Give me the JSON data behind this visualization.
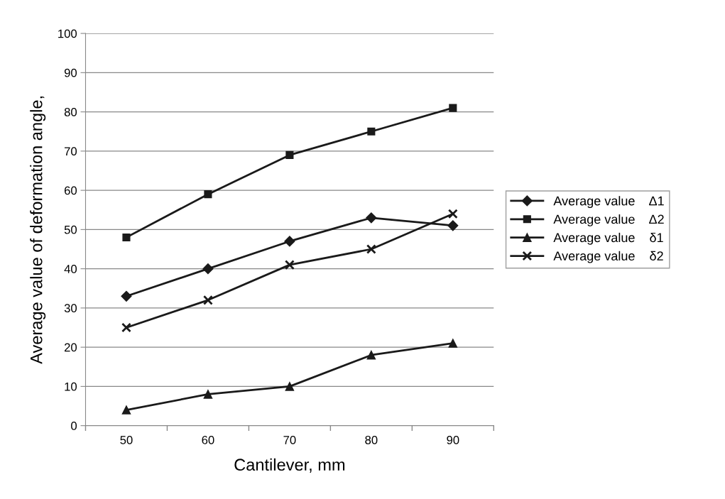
{
  "chart_data": {
    "type": "line",
    "xlabel": "Cantilever, mm",
    "ylabel": "Average value of deformation angle,",
    "categories": [
      "50",
      "60",
      "70",
      "80",
      "90"
    ],
    "series": [
      {
        "name": "Average value    Δ1",
        "color": "#1a1a1a",
        "marker": "diamond",
        "values": [
          33,
          40,
          47,
          53,
          51
        ]
      },
      {
        "name": "Average value    Δ2",
        "color": "#1a1a1a",
        "marker": "square",
        "values": [
          48,
          59,
          69,
          75,
          81
        ]
      },
      {
        "name": "Average value    δ1",
        "color": "#1a1a1a",
        "marker": "triangle",
        "values": [
          4,
          8,
          10,
          18,
          21
        ]
      },
      {
        "name": "Average value    δ2",
        "color": "#1a1a1a",
        "marker": "cross",
        "values": [
          25,
          32,
          41,
          45,
          54
        ]
      }
    ],
    "ylim": [
      0,
      100
    ],
    "yticks": [
      0,
      10,
      20,
      30,
      40,
      50,
      60,
      70,
      80,
      90,
      100
    ],
    "grid": "y",
    "legend": "right",
    "line_style": "solid"
  }
}
